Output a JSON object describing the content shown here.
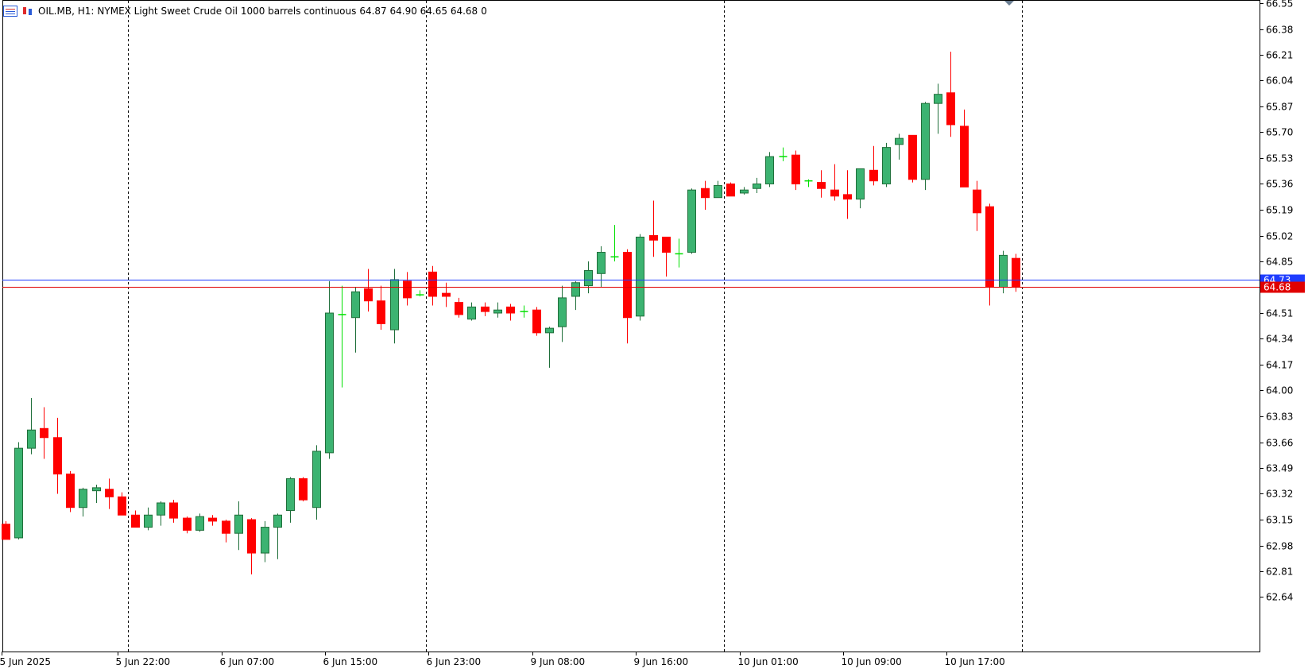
{
  "header": {
    "symbol": "OIL.MB, H1:",
    "description": "NYMEX Light Sweet Crude Oil 1000 barrels continuous",
    "ohlc": "64.87 64.90 64.65 64.68",
    "volume": "0"
  },
  "colors": {
    "up_body": "#3cb371",
    "up_border": "#1f6f3a",
    "down_body": "#ff0000",
    "doji": "#00e000",
    "bid_line": "#1e3cff",
    "ask_line": "#e00000",
    "grid": "#000000",
    "axis": "#000000"
  },
  "chart_data": {
    "type": "candlestick",
    "timeframe": "H1",
    "ylim": [
      62.47,
      66.55
    ],
    "y_ticks": [
      "66.55",
      "66.38",
      "66.21",
      "66.04",
      "65.87",
      "65.70",
      "65.53",
      "65.36",
      "65.19",
      "65.02",
      "64.85",
      "64.51",
      "64.34",
      "64.17",
      "64.00",
      "63.83",
      "63.66",
      "63.49",
      "63.32",
      "63.15",
      "62.98",
      "62.81",
      "62.64"
    ],
    "x_ticks": [
      {
        "label": "5 Jun 2025",
        "index": 0
      },
      {
        "label": "5 Jun 22:00",
        "index": 9
      },
      {
        "label": "6 Jun 07:00",
        "index": 17
      },
      {
        "label": "6 Jun 15:00",
        "index": 25
      },
      {
        "label": "6 Jun 23:00",
        "index": 33
      },
      {
        "label": "9 Jun 08:00",
        "index": 41
      },
      {
        "label": "9 Jun 16:00",
        "index": 49
      },
      {
        "label": "10 Jun 01:00",
        "index": 57
      },
      {
        "label": "10 Jun 09:00",
        "index": 65
      },
      {
        "label": "10 Jun 17:00",
        "index": 73
      }
    ],
    "period_separators": [
      9.5,
      32.5,
      55.5,
      78.5
    ],
    "price_lines": [
      {
        "name": "bid",
        "value": 64.73,
        "label": "64.73"
      },
      {
        "name": "ask",
        "value": 64.68,
        "label": "64.68"
      }
    ],
    "ohlc": [
      [
        63.12,
        63.14,
        63.02,
        63.02
      ],
      [
        63.03,
        63.66,
        63.02,
        63.62
      ],
      [
        63.62,
        63.95,
        63.58,
        63.74
      ],
      [
        63.75,
        63.89,
        63.55,
        63.69
      ],
      [
        63.69,
        63.82,
        63.32,
        63.45
      ],
      [
        63.45,
        63.47,
        63.2,
        63.23
      ],
      [
        63.23,
        63.36,
        63.17,
        63.35
      ],
      [
        63.34,
        63.38,
        63.26,
        63.36
      ],
      [
        63.35,
        63.42,
        63.22,
        63.3
      ],
      [
        63.3,
        63.33,
        63.18,
        63.18
      ],
      [
        63.18,
        63.21,
        63.1,
        63.1
      ],
      [
        63.1,
        63.23,
        63.08,
        63.18
      ],
      [
        63.18,
        63.27,
        63.11,
        63.26
      ],
      [
        63.26,
        63.28,
        63.13,
        63.16
      ],
      [
        63.16,
        63.17,
        63.06,
        63.08
      ],
      [
        63.08,
        63.19,
        63.07,
        63.17
      ],
      [
        63.16,
        63.18,
        63.11,
        63.14
      ],
      [
        63.14,
        63.15,
        63.0,
        63.06
      ],
      [
        63.06,
        63.27,
        62.95,
        63.18
      ],
      [
        63.15,
        63.16,
        62.79,
        62.93
      ],
      [
        62.93,
        63.14,
        62.87,
        63.1
      ],
      [
        63.1,
        63.19,
        62.89,
        63.18
      ],
      [
        63.21,
        63.43,
        63.13,
        63.42
      ],
      [
        63.42,
        63.43,
        63.27,
        63.28
      ],
      [
        63.23,
        63.64,
        63.15,
        63.6
      ],
      [
        63.59,
        64.72,
        63.55,
        64.51
      ],
      [
        64.5,
        64.69,
        64.02,
        64.49
      ],
      [
        64.48,
        64.68,
        64.25,
        64.65
      ],
      [
        64.67,
        64.8,
        64.52,
        64.59
      ],
      [
        64.59,
        64.69,
        64.4,
        64.44
      ],
      [
        64.4,
        64.8,
        64.31,
        64.73
      ],
      [
        64.72,
        64.78,
        64.56,
        64.61
      ],
      [
        64.63,
        64.66,
        64.62,
        64.64
      ],
      [
        64.78,
        64.82,
        64.56,
        64.62
      ],
      [
        64.64,
        64.71,
        64.55,
        64.62
      ],
      [
        64.58,
        64.61,
        64.48,
        64.5
      ],
      [
        64.47,
        64.58,
        64.46,
        64.55
      ],
      [
        64.55,
        64.58,
        64.49,
        64.52
      ],
      [
        64.51,
        64.58,
        64.48,
        64.53
      ],
      [
        64.55,
        64.57,
        64.46,
        64.51
      ],
      [
        64.52,
        64.56,
        64.48,
        64.51
      ],
      [
        64.53,
        64.55,
        64.36,
        64.38
      ],
      [
        64.38,
        64.42,
        64.15,
        64.41
      ],
      [
        64.42,
        64.69,
        64.32,
        64.61
      ],
      [
        64.62,
        64.72,
        64.53,
        64.71
      ],
      [
        64.69,
        64.85,
        64.64,
        64.79
      ],
      [
        64.77,
        64.95,
        64.68,
        64.91
      ],
      [
        64.88,
        65.09,
        64.85,
        64.88
      ],
      [
        64.91,
        64.93,
        64.31,
        64.48
      ],
      [
        64.49,
        65.03,
        64.46,
        65.01
      ],
      [
        65.02,
        65.25,
        64.88,
        64.99
      ],
      [
        65.01,
        65.01,
        64.75,
        64.91
      ],
      [
        64.9,
        65.0,
        64.81,
        64.9
      ],
      [
        64.91,
        65.33,
        64.9,
        65.32
      ],
      [
        65.33,
        65.38,
        65.19,
        65.27
      ],
      [
        65.27,
        65.38,
        65.27,
        65.35
      ],
      [
        65.36,
        65.37,
        65.28,
        65.28
      ],
      [
        65.3,
        65.34,
        65.29,
        65.32
      ],
      [
        65.33,
        65.4,
        65.3,
        65.36
      ],
      [
        65.36,
        65.57,
        65.34,
        65.54
      ],
      [
        65.54,
        65.6,
        65.51,
        65.54
      ],
      [
        65.55,
        65.58,
        65.32,
        65.36
      ],
      [
        65.38,
        65.39,
        65.34,
        65.38
      ],
      [
        65.37,
        65.45,
        65.27,
        65.33
      ],
      [
        65.32,
        65.49,
        65.25,
        65.28
      ],
      [
        65.29,
        65.45,
        65.13,
        65.26
      ],
      [
        65.26,
        65.46,
        65.2,
        65.46
      ],
      [
        65.45,
        65.61,
        65.35,
        65.38
      ],
      [
        65.36,
        65.63,
        65.34,
        65.6
      ],
      [
        65.62,
        65.69,
        65.52,
        65.66
      ],
      [
        65.68,
        65.68,
        65.37,
        65.39
      ],
      [
        65.39,
        65.9,
        65.32,
        65.89
      ],
      [
        65.89,
        66.02,
        65.69,
        65.95
      ],
      [
        65.96,
        66.23,
        65.67,
        65.75
      ],
      [
        65.74,
        65.85,
        65.34,
        65.34
      ],
      [
        65.32,
        65.38,
        65.05,
        65.17
      ],
      [
        65.21,
        65.23,
        64.56,
        64.68
      ],
      [
        64.68,
        64.92,
        64.64,
        64.89
      ],
      [
        64.87,
        64.9,
        64.65,
        64.68
      ]
    ]
  }
}
